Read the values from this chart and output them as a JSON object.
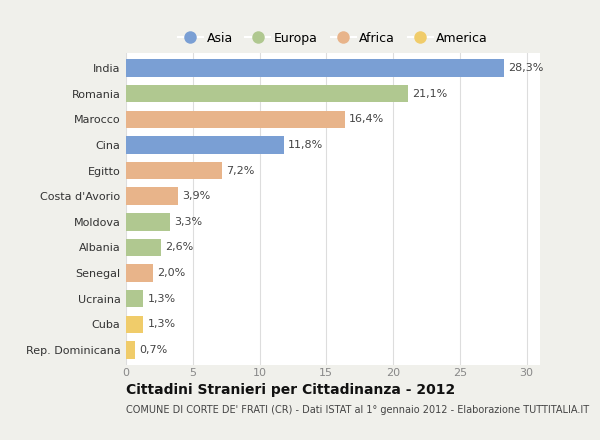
{
  "countries": [
    "India",
    "Romania",
    "Marocco",
    "Cina",
    "Egitto",
    "Costa d'Avorio",
    "Moldova",
    "Albania",
    "Senegal",
    "Ucraina",
    "Cuba",
    "Rep. Dominicana"
  ],
  "values": [
    28.3,
    21.1,
    16.4,
    11.8,
    7.2,
    3.9,
    3.3,
    2.6,
    2.0,
    1.3,
    1.3,
    0.7
  ],
  "labels": [
    "28,3%",
    "21,1%",
    "16,4%",
    "11,8%",
    "7,2%",
    "3,9%",
    "3,3%",
    "2,6%",
    "2,0%",
    "1,3%",
    "1,3%",
    "0,7%"
  ],
  "continents": [
    "Asia",
    "Europa",
    "Africa",
    "Asia",
    "Africa",
    "Africa",
    "Europa",
    "Europa",
    "Africa",
    "Europa",
    "America",
    "America"
  ],
  "colors": {
    "Asia": "#7a9fd4",
    "Europa": "#b0c890",
    "Africa": "#e8b48a",
    "America": "#f0cc6a"
  },
  "legend_order": [
    "Asia",
    "Europa",
    "Africa",
    "America"
  ],
  "title": "Cittadini Stranieri per Cittadinanza - 2012",
  "subtitle": "COMUNE DI CORTE DE' FRATI (CR) - Dati ISTAT al 1° gennaio 2012 - Elaborazione TUTTITALIA.IT",
  "xlim": [
    0,
    31
  ],
  "xticks": [
    0,
    5,
    10,
    15,
    20,
    25,
    30
  ],
  "figure_bg": "#f0f0eb",
  "plot_bg": "#ffffff",
  "grid_color": "#dddddd",
  "bar_height": 0.68,
  "label_fontsize": 8,
  "ytick_fontsize": 8,
  "xtick_fontsize": 8
}
